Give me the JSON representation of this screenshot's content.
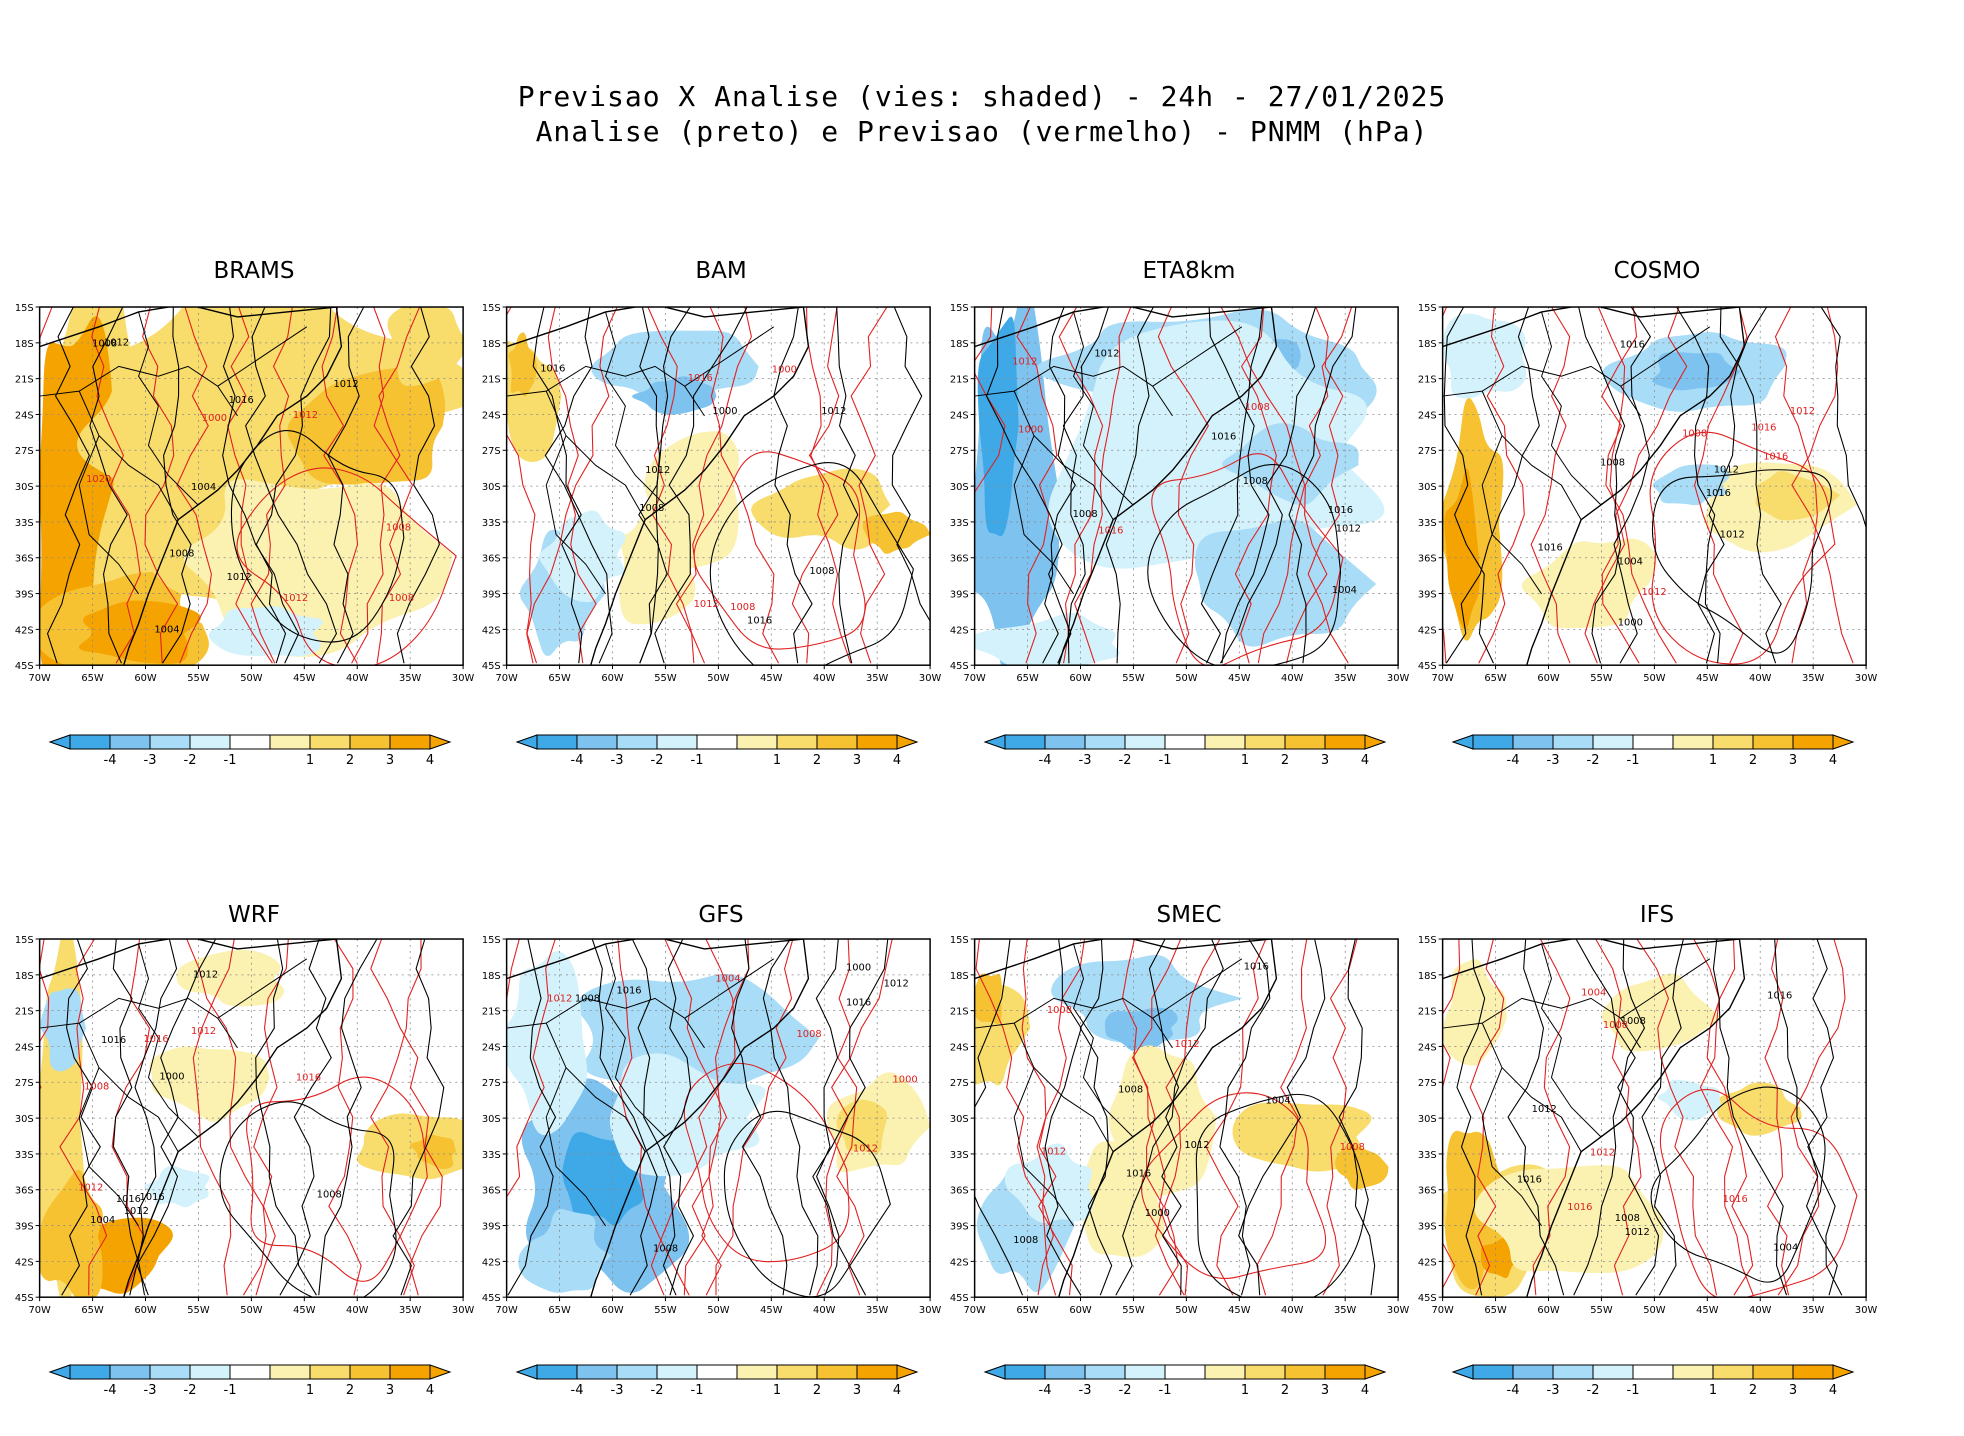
{
  "title": {
    "line1": "Previsao X Analise (vies: shaded) - 24h - 27/01/2025",
    "line2": "Analise (preto) e Previsao (vermelho) - PNMM (hPa)"
  },
  "colors": {
    "neg4": "#3fa9e8",
    "neg3": "#7ec3f0",
    "neg2": "#a9dcf6",
    "neg1": "#d4f2fb",
    "zero": "#ffffff",
    "pos1": "#fbf1b0",
    "pos2": "#f8dc6c",
    "pos3": "#f6c232",
    "pos4": "#f4a300",
    "analysis_contour": "#000000",
    "forecast_contour": "#e02020",
    "coast": "#000000",
    "grid": "#888888"
  },
  "axes": {
    "lat_labels": [
      "15S",
      "18S",
      "21S",
      "24S",
      "27S",
      "30S",
      "33S",
      "36S",
      "39S",
      "42S",
      "45S"
    ],
    "lon_labels": [
      "70W",
      "65W",
      "60W",
      "55W",
      "50W",
      "45W",
      "40W",
      "35W",
      "30W"
    ]
  },
  "colorbar": {
    "labels": [
      "-4",
      "-3",
      "-2",
      "-1",
      "1",
      "2",
      "3",
      "4"
    ]
  },
  "panels": [
    {
      "name": "BRAMS",
      "bias": "warm-strong",
      "contour_labels_black": [
        "1004",
        "1008",
        "1012",
        "1016",
        "1004",
        "1008",
        "1012",
        "1012"
      ],
      "contour_labels_red": [
        "1008",
        "1012",
        "1008",
        "1012",
        "1000",
        "1020"
      ]
    },
    {
      "name": "BAM",
      "bias": "mixed",
      "contour_labels_black": [
        "1008",
        "1012",
        "1016",
        "1000",
        "1008",
        "1016",
        "1012"
      ],
      "contour_labels_red": [
        "1012",
        "1016",
        "1008",
        "1000"
      ]
    },
    {
      "name": "ETA8km",
      "bias": "cold",
      "contour_labels_black": [
        "1008",
        "1012",
        "1004",
        "1016",
        "1008",
        "1012",
        "1016"
      ],
      "contour_labels_red": [
        "1008",
        "1016",
        "1012",
        "1000"
      ]
    },
    {
      "name": "COSMO",
      "bias": "mixed-cold-north",
      "contour_labels_black": [
        "1016",
        "1012",
        "1008",
        "1012",
        "1016",
        "1004",
        "1000",
        "1016"
      ],
      "contour_labels_red": [
        "1016",
        "1012",
        "1008",
        "1016",
        "1012"
      ]
    },
    {
      "name": "WRF",
      "bias": "mixed-west",
      "contour_labels_black": [
        "1012",
        "1016",
        "1008",
        "1012",
        "1004",
        "1000",
        "1016",
        "1016"
      ],
      "contour_labels_red": [
        "1012",
        "1008",
        "1016",
        "1012",
        "1016"
      ]
    },
    {
      "name": "GFS",
      "bias": "cold-south",
      "contour_labels_black": [
        "1008",
        "1012",
        "1016",
        "1000",
        "1008",
        "1016"
      ],
      "contour_labels_red": [
        "1008",
        "1012",
        "1004",
        "1012",
        "1000"
      ]
    },
    {
      "name": "SMEC",
      "bias": "mixed",
      "contour_labels_black": [
        "1008",
        "1012",
        "1016",
        "1004",
        "1000",
        "1016",
        "1008"
      ],
      "contour_labels_red": [
        "1008",
        "1012",
        "1008",
        "1012"
      ]
    },
    {
      "name": "IFS",
      "bias": "warm-southwest",
      "contour_labels_black": [
        "1008",
        "1016",
        "1012",
        "1004",
        "1008",
        "1016",
        "1012"
      ],
      "contour_labels_red": [
        "1008",
        "1012",
        "1016",
        "1004",
        "1016"
      ]
    }
  ]
}
